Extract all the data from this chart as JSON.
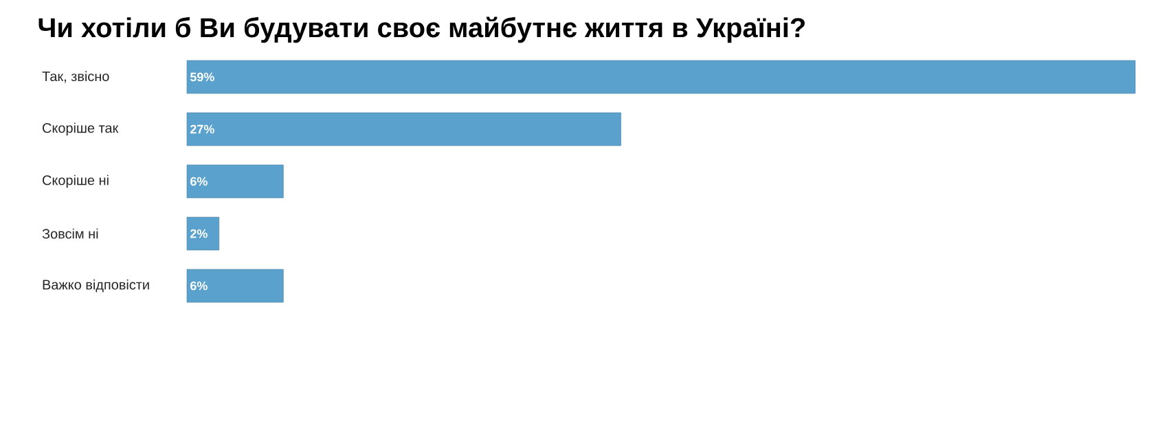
{
  "chart_data": {
    "type": "bar",
    "orientation": "horizontal",
    "title": "Чи хотіли б Ви будувати своє майбутнє життя в Україні?",
    "categories": [
      "Так, звісно",
      "Скоріше так",
      "Скоріше ні",
      "Зовсім ні",
      "Важко відповісти"
    ],
    "values": [
      59,
      27,
      6,
      2,
      6
    ],
    "value_labels": [
      "59%",
      "27%",
      "6%",
      "2%",
      "6%"
    ],
    "color": "#5aa2cd",
    "xlim": [
      0,
      59
    ]
  }
}
